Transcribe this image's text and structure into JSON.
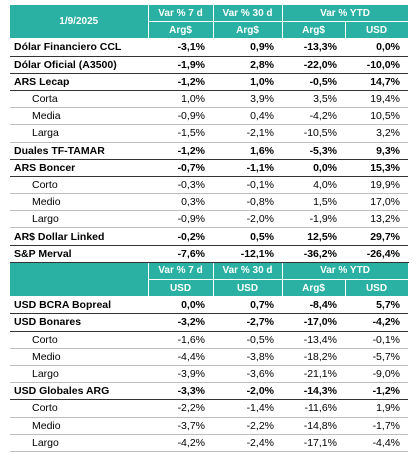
{
  "sections": [
    {
      "header": {
        "title": "1/9/2025",
        "columns": [
          "Var % 7 d",
          "Var % 30 d",
          "Var % YTD"
        ],
        "units": [
          "Arg$",
          "Arg$",
          "Arg$",
          "USD"
        ]
      },
      "rows": [
        {
          "label": "Dólar Financiero CCL",
          "bold": true,
          "values": [
            "-3,1%",
            "0,9%",
            "-13,3%",
            "0,0%"
          ]
        },
        {
          "label": "Dólar Oficial (A3500)",
          "bold": true,
          "values": [
            "-1,9%",
            "2,8%",
            "-22,0%",
            "-10,0%"
          ]
        },
        {
          "label": "ARS Lecap",
          "bold": true,
          "values": [
            "-1,2%",
            "1,0%",
            "-0,5%",
            "14,7%"
          ]
        },
        {
          "label": "Corta",
          "bold": false,
          "values": [
            "1,0%",
            "3,9%",
            "3,5%",
            "19,4%"
          ]
        },
        {
          "label": "Media",
          "bold": false,
          "values": [
            "-0,9%",
            "0,4%",
            "-4,2%",
            "10,5%"
          ]
        },
        {
          "label": "Larga",
          "bold": false,
          "values": [
            "-1,5%",
            "-2,1%",
            "-10,5%",
            "3,2%"
          ]
        },
        {
          "label": "Duales TF-TAMAR",
          "bold": true,
          "values": [
            "-1,2%",
            "1,6%",
            "-5,3%",
            "9,3%"
          ]
        },
        {
          "label": "ARS Boncer",
          "bold": true,
          "values": [
            "-0,7%",
            "-1,1%",
            "0,0%",
            "15,3%"
          ]
        },
        {
          "label": "Corto",
          "bold": false,
          "values": [
            "-0,3%",
            "-0,1%",
            "4,0%",
            "19,9%"
          ]
        },
        {
          "label": "Medio",
          "bold": false,
          "values": [
            "0,3%",
            "-0,8%",
            "1,5%",
            "17,0%"
          ]
        },
        {
          "label": "Largo",
          "bold": false,
          "values": [
            "-0,9%",
            "-2,0%",
            "-1,9%",
            "13,2%"
          ]
        },
        {
          "label": "AR$ Dollar Linked",
          "bold": true,
          "values": [
            "-0,2%",
            "0,5%",
            "12,5%",
            "29,7%"
          ]
        },
        {
          "label": "S&P Merval",
          "bold": true,
          "values": [
            "-7,6%",
            "-12,1%",
            "-36,2%",
            "-26,4%"
          ]
        }
      ]
    },
    {
      "header": {
        "columns": [
          "Var % 7 d",
          "Var % 30 d",
          "Var % YTD"
        ],
        "units": [
          "USD",
          "USD",
          "Arg$",
          "USD"
        ]
      },
      "rows": [
        {
          "label": "USD BCRA Bopreal",
          "bold": true,
          "values": [
            "0,0%",
            "0,7%",
            "-8,4%",
            "5,7%"
          ]
        },
        {
          "label": "USD Bonares",
          "bold": true,
          "values": [
            "-3,2%",
            "-2,7%",
            "-17,0%",
            "-4,2%"
          ]
        },
        {
          "label": "Corto",
          "bold": false,
          "values": [
            "-1,6%",
            "-0,5%",
            "-13,4%",
            "-0,1%"
          ]
        },
        {
          "label": "Medio",
          "bold": false,
          "values": [
            "-4,4%",
            "-3,8%",
            "-18,2%",
            "-5,7%"
          ]
        },
        {
          "label": "Largo",
          "bold": false,
          "values": [
            "-3,9%",
            "-3,6%",
            "-21,1%",
            "-9,0%"
          ]
        },
        {
          "label": "USD Globales ARG",
          "bold": true,
          "values": [
            "-3,3%",
            "-2,0%",
            "-14,3%",
            "-1,2%"
          ]
        },
        {
          "label": "Corto",
          "bold": false,
          "values": [
            "-2,2%",
            "-1,4%",
            "-11,6%",
            "1,9%"
          ]
        },
        {
          "label": "Medio",
          "bold": false,
          "values": [
            "-3,7%",
            "-2,2%",
            "-14,8%",
            "-1,7%"
          ]
        },
        {
          "label": "Largo",
          "bold": false,
          "values": [
            "-4,2%",
            "-2,4%",
            "-17,1%",
            "-4,4%"
          ]
        }
      ]
    }
  ]
}
